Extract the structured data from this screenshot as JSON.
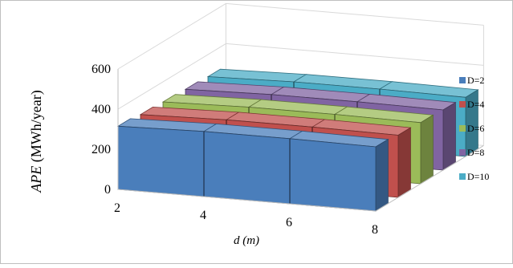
{
  "chart_data": {
    "type": "bar",
    "subtype": "3d-area-ribbons",
    "x": [
      2,
      4,
      6,
      8
    ],
    "x_tick_labels": [
      "2",
      "4",
      "6",
      "8"
    ],
    "xlabel_italic": "d",
    "xlabel_unit": " (m)",
    "ylabel_italic": "APE",
    "ylabel_unit": " (MWh/year)",
    "y_tick_labels": [
      "0",
      "200",
      "400",
      "600"
    ],
    "ylim": [
      0,
      600
    ],
    "grid": true,
    "legend_position": "right",
    "series": [
      {
        "name": "D=2",
        "color": "#4a7ebb",
        "values": [
          315,
          325,
          325,
          320
        ]
      },
      {
        "name": "D=4",
        "color": "#c0504d",
        "values": [
          305,
          315,
          315,
          310
        ]
      },
      {
        "name": "D=6",
        "color": "#9bbb59",
        "values": [
          300,
          310,
          310,
          305
        ]
      },
      {
        "name": "D=8",
        "color": "#8064a2",
        "values": [
          295,
          305,
          305,
          300
        ]
      },
      {
        "name": "D=10",
        "color": "#4bacc6",
        "values": [
          290,
          300,
          300,
          295
        ]
      }
    ]
  }
}
